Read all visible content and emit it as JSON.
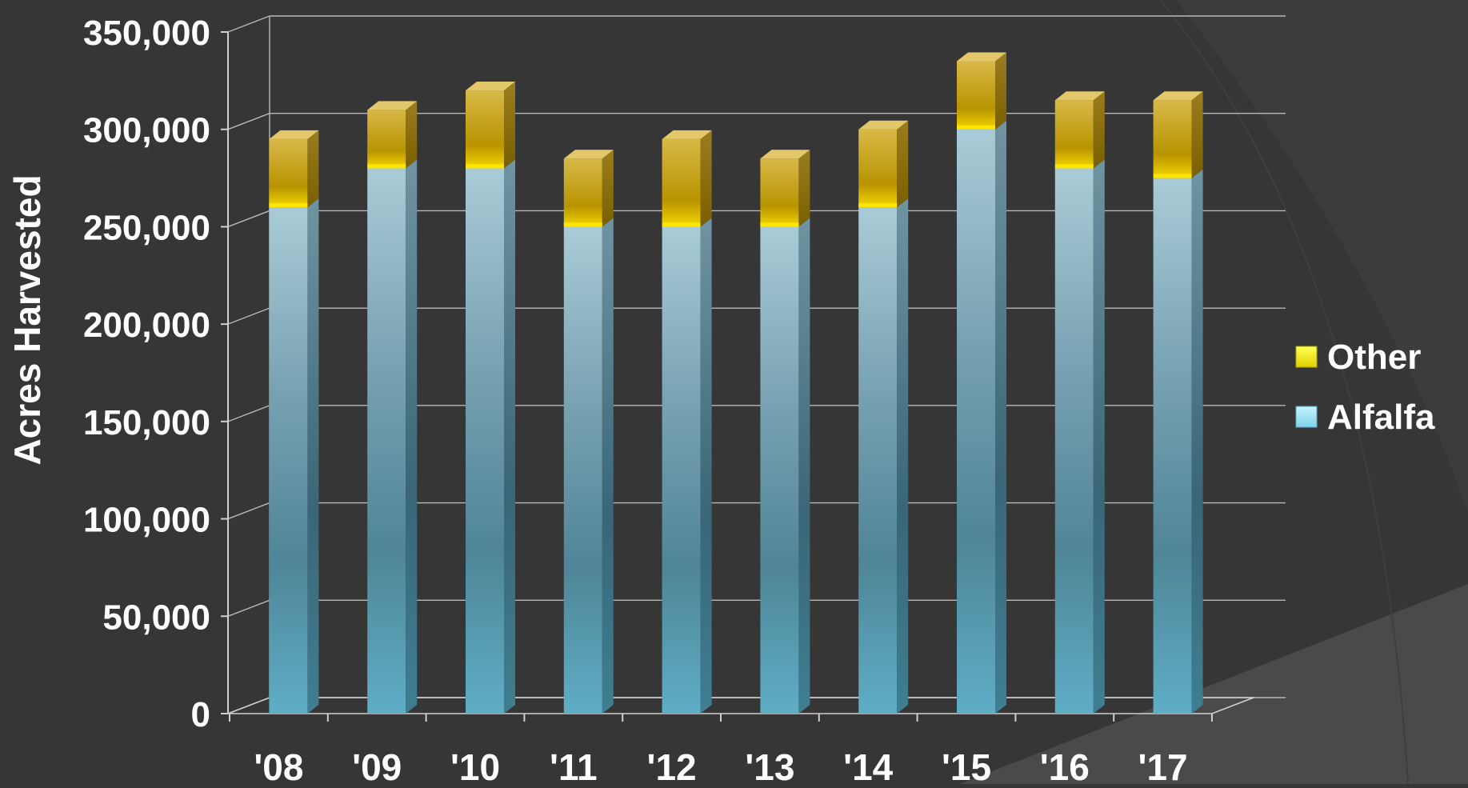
{
  "chart_data": {
    "type": "bar",
    "stacked": true,
    "categories": [
      "'08",
      "'09",
      "'10",
      "'11",
      "'12",
      "'13",
      "'14",
      "'15",
      "'16",
      "'17"
    ],
    "series": [
      {
        "name": "Alfalfa",
        "values": [
          260000,
          280000,
          280000,
          250000,
          250000,
          250000,
          260000,
          300000,
          280000,
          275000
        ],
        "color": "#5aa9c2"
      },
      {
        "name": "Other",
        "values": [
          35000,
          30000,
          40000,
          35000,
          45000,
          35000,
          40000,
          35000,
          35000,
          40000
        ],
        "color": "#c9a400"
      }
    ],
    "ylabel": "Acres Harvested",
    "ylim": [
      0,
      350000
    ],
    "yticks": [
      0,
      50000,
      100000,
      150000,
      200000,
      250000,
      300000,
      350000
    ],
    "ytick_labels": [
      "0",
      "50,000",
      "100,000",
      "150,000",
      "200,000",
      "250,000",
      "300,000",
      "350,000"
    ],
    "legend": {
      "position": "right",
      "entries": [
        "Other",
        "Alfalfa"
      ]
    },
    "grid": true,
    "style": "3d-column",
    "colors": {
      "background": "#363636",
      "text": "#ffffff",
      "grid": "#b8b8b8",
      "legend_other": "#ffff00",
      "legend_alfalfa": "#9fe6f5"
    }
  }
}
